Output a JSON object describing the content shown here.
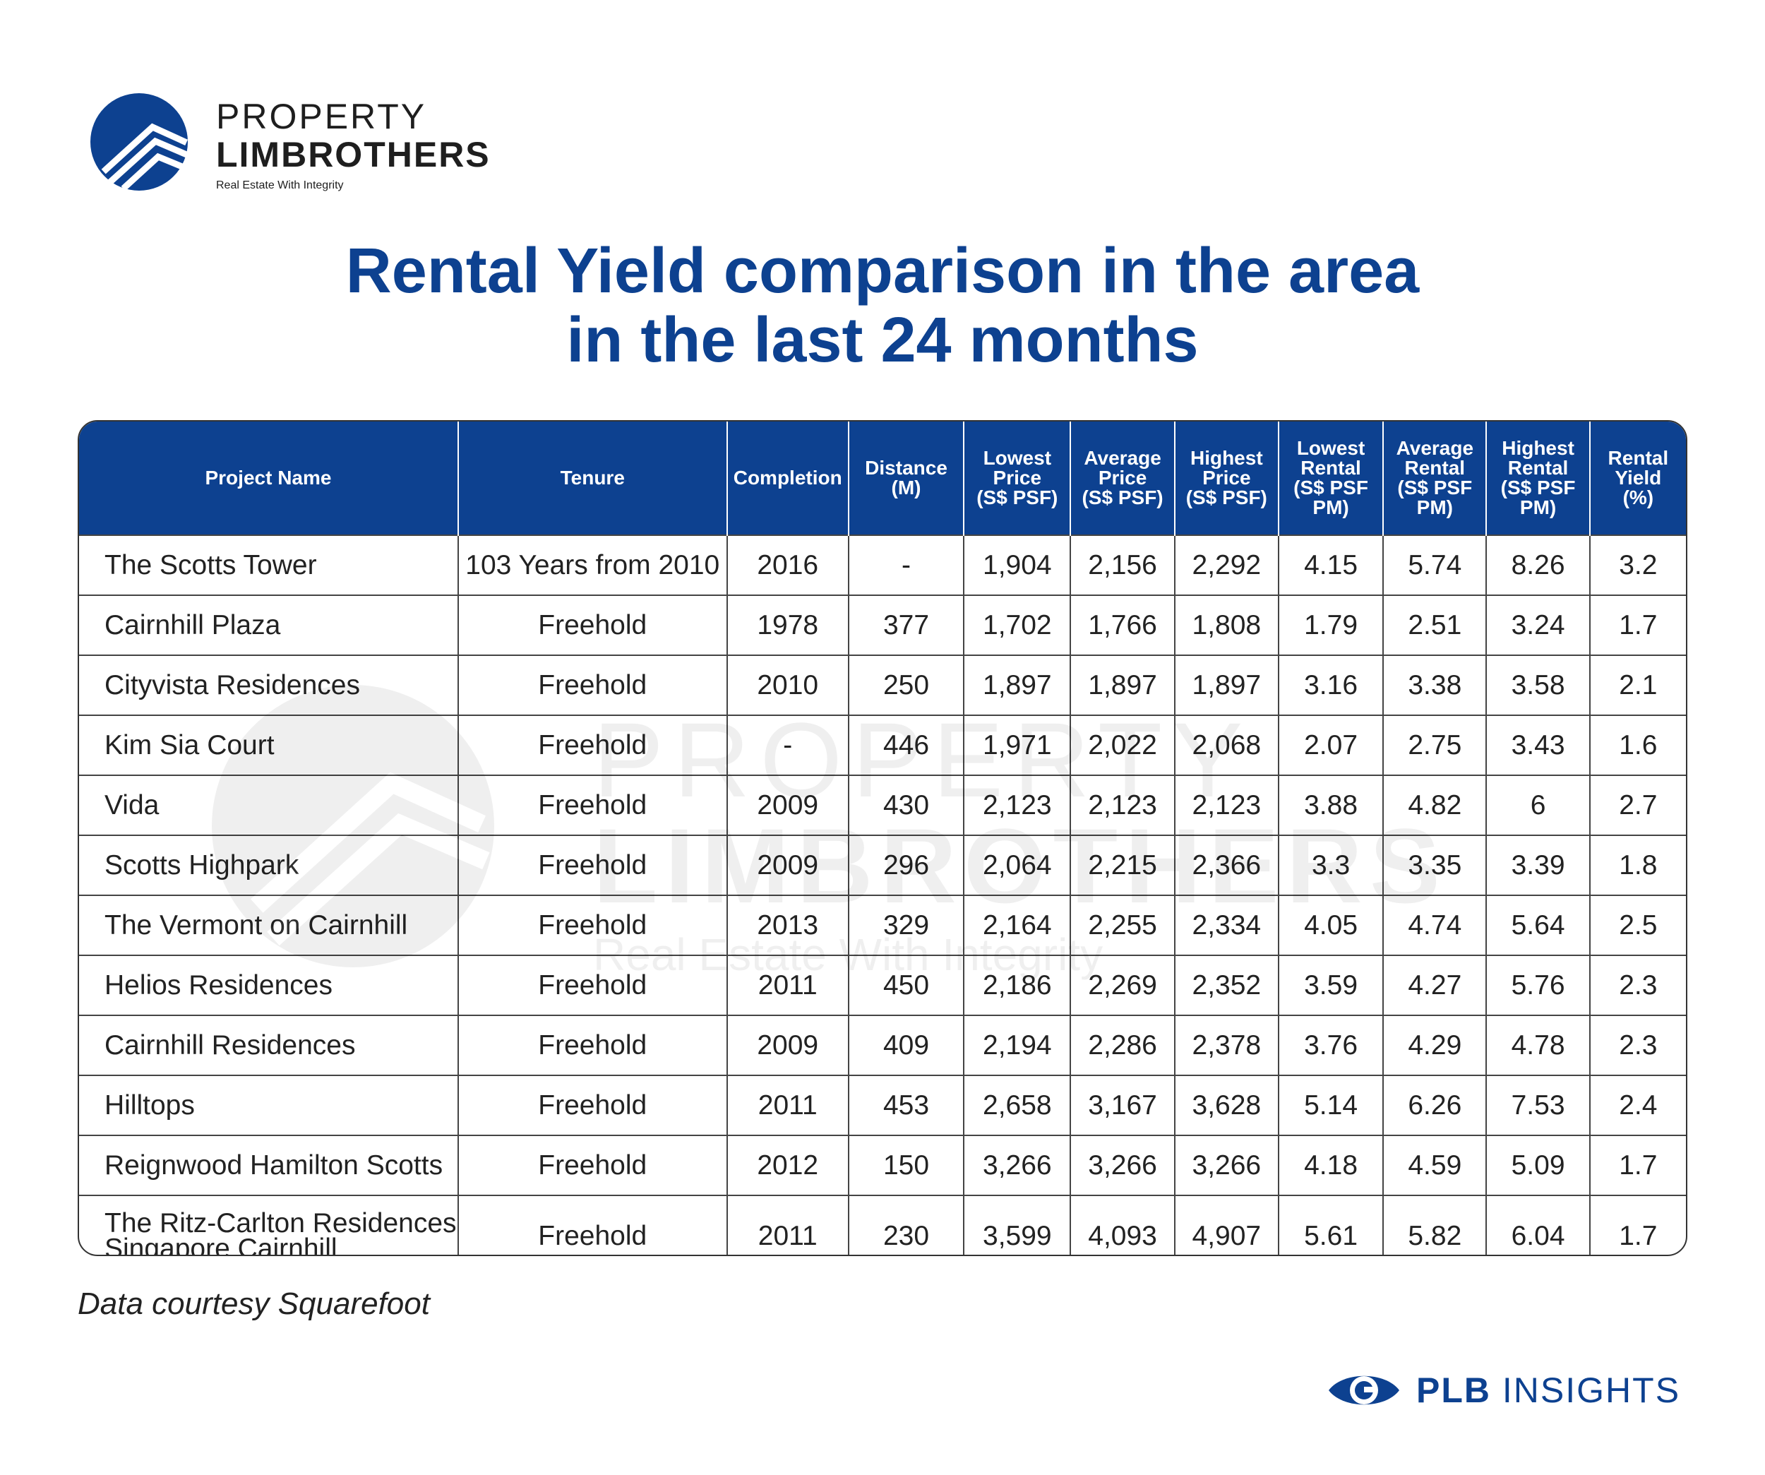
{
  "brand": {
    "name_line1": "PROPERTY",
    "name_line2": "LIMBROTHERS",
    "tagline": "Real Estate With Integrity",
    "color": "#0d4190"
  },
  "title": {
    "line1": "Rental Yield comparison in the area",
    "line2": "in the last 24 months"
  },
  "table": {
    "headers": [
      [
        "Project Name"
      ],
      [
        "Tenure"
      ],
      [
        "Completion"
      ],
      [
        "Distance",
        "(M)"
      ],
      [
        "Lowest",
        "Price",
        "(S$ PSF)"
      ],
      [
        "Average",
        "Price",
        "(S$ PSF)"
      ],
      [
        "Highest",
        "Price",
        "(S$ PSF)"
      ],
      [
        "Lowest",
        "Rental",
        "(S$ PSF",
        "PM)"
      ],
      [
        "Average",
        "Rental",
        "(S$ PSF",
        "PM)"
      ],
      [
        "Highest",
        "Rental",
        "(S$ PSF",
        "PM)"
      ],
      [
        "Rental",
        "Yield",
        "(%)"
      ]
    ],
    "rows": [
      [
        "The Scotts Tower",
        "103 Years from 2010",
        "2016",
        "-",
        "1,904",
        "2,156",
        "2,292",
        "4.15",
        "5.74",
        "8.26",
        "3.2"
      ],
      [
        "Cairnhill Plaza",
        "Freehold",
        "1978",
        "377",
        "1,702",
        "1,766",
        "1,808",
        "1.79",
        "2.51",
        "3.24",
        "1.7"
      ],
      [
        "Cityvista Residences",
        "Freehold",
        "2010",
        "250",
        "1,897",
        "1,897",
        "1,897",
        "3.16",
        "3.38",
        "3.58",
        "2.1"
      ],
      [
        "Kim Sia Court",
        "Freehold",
        "-",
        "446",
        "1,971",
        "2,022",
        "2,068",
        "2.07",
        "2.75",
        "3.43",
        "1.6"
      ],
      [
        "Vida",
        "Freehold",
        "2009",
        "430",
        "2,123",
        "2,123",
        "2,123",
        "3.88",
        "4.82",
        "6",
        "2.7"
      ],
      [
        "Scotts Highpark",
        "Freehold",
        "2009",
        "296",
        "2,064",
        "2,215",
        "2,366",
        "3.3",
        "3.35",
        "3.39",
        "1.8"
      ],
      [
        "The Vermont on Cairnhill",
        "Freehold",
        "2013",
        "329",
        "2,164",
        "2,255",
        "2,334",
        "4.05",
        "4.74",
        "5.64",
        "2.5"
      ],
      [
        "Helios Residences",
        "Freehold",
        "2011",
        "450",
        "2,186",
        "2,269",
        "2,352",
        "3.59",
        "4.27",
        "5.76",
        "2.3"
      ],
      [
        "Cairnhill Residences",
        "Freehold",
        "2009",
        "409",
        "2,194",
        "2,286",
        "2,378",
        "3.76",
        "4.29",
        "4.78",
        "2.3"
      ],
      [
        "Hilltops",
        "Freehold",
        "2011",
        "453",
        "2,658",
        "3,167",
        "3,628",
        "5.14",
        "6.26",
        "7.53",
        "2.4"
      ],
      [
        "Reignwood Hamilton Scotts",
        "Freehold",
        "2012",
        "150",
        "3,266",
        "3,266",
        "3,266",
        "4.18",
        "4.59",
        "5.09",
        "1.7"
      ],
      [
        "The Ritz-Carlton Residences Singapore Cairnhill",
        "Freehold",
        "2011",
        "230",
        "3,599",
        "4,093",
        "4,907",
        "5.61",
        "5.82",
        "6.04",
        "1.7"
      ]
    ]
  },
  "footer": {
    "note": "Data courtesy Squarefoot",
    "badge_bold": "PLB",
    "badge_rest": "INSIGHTS"
  }
}
